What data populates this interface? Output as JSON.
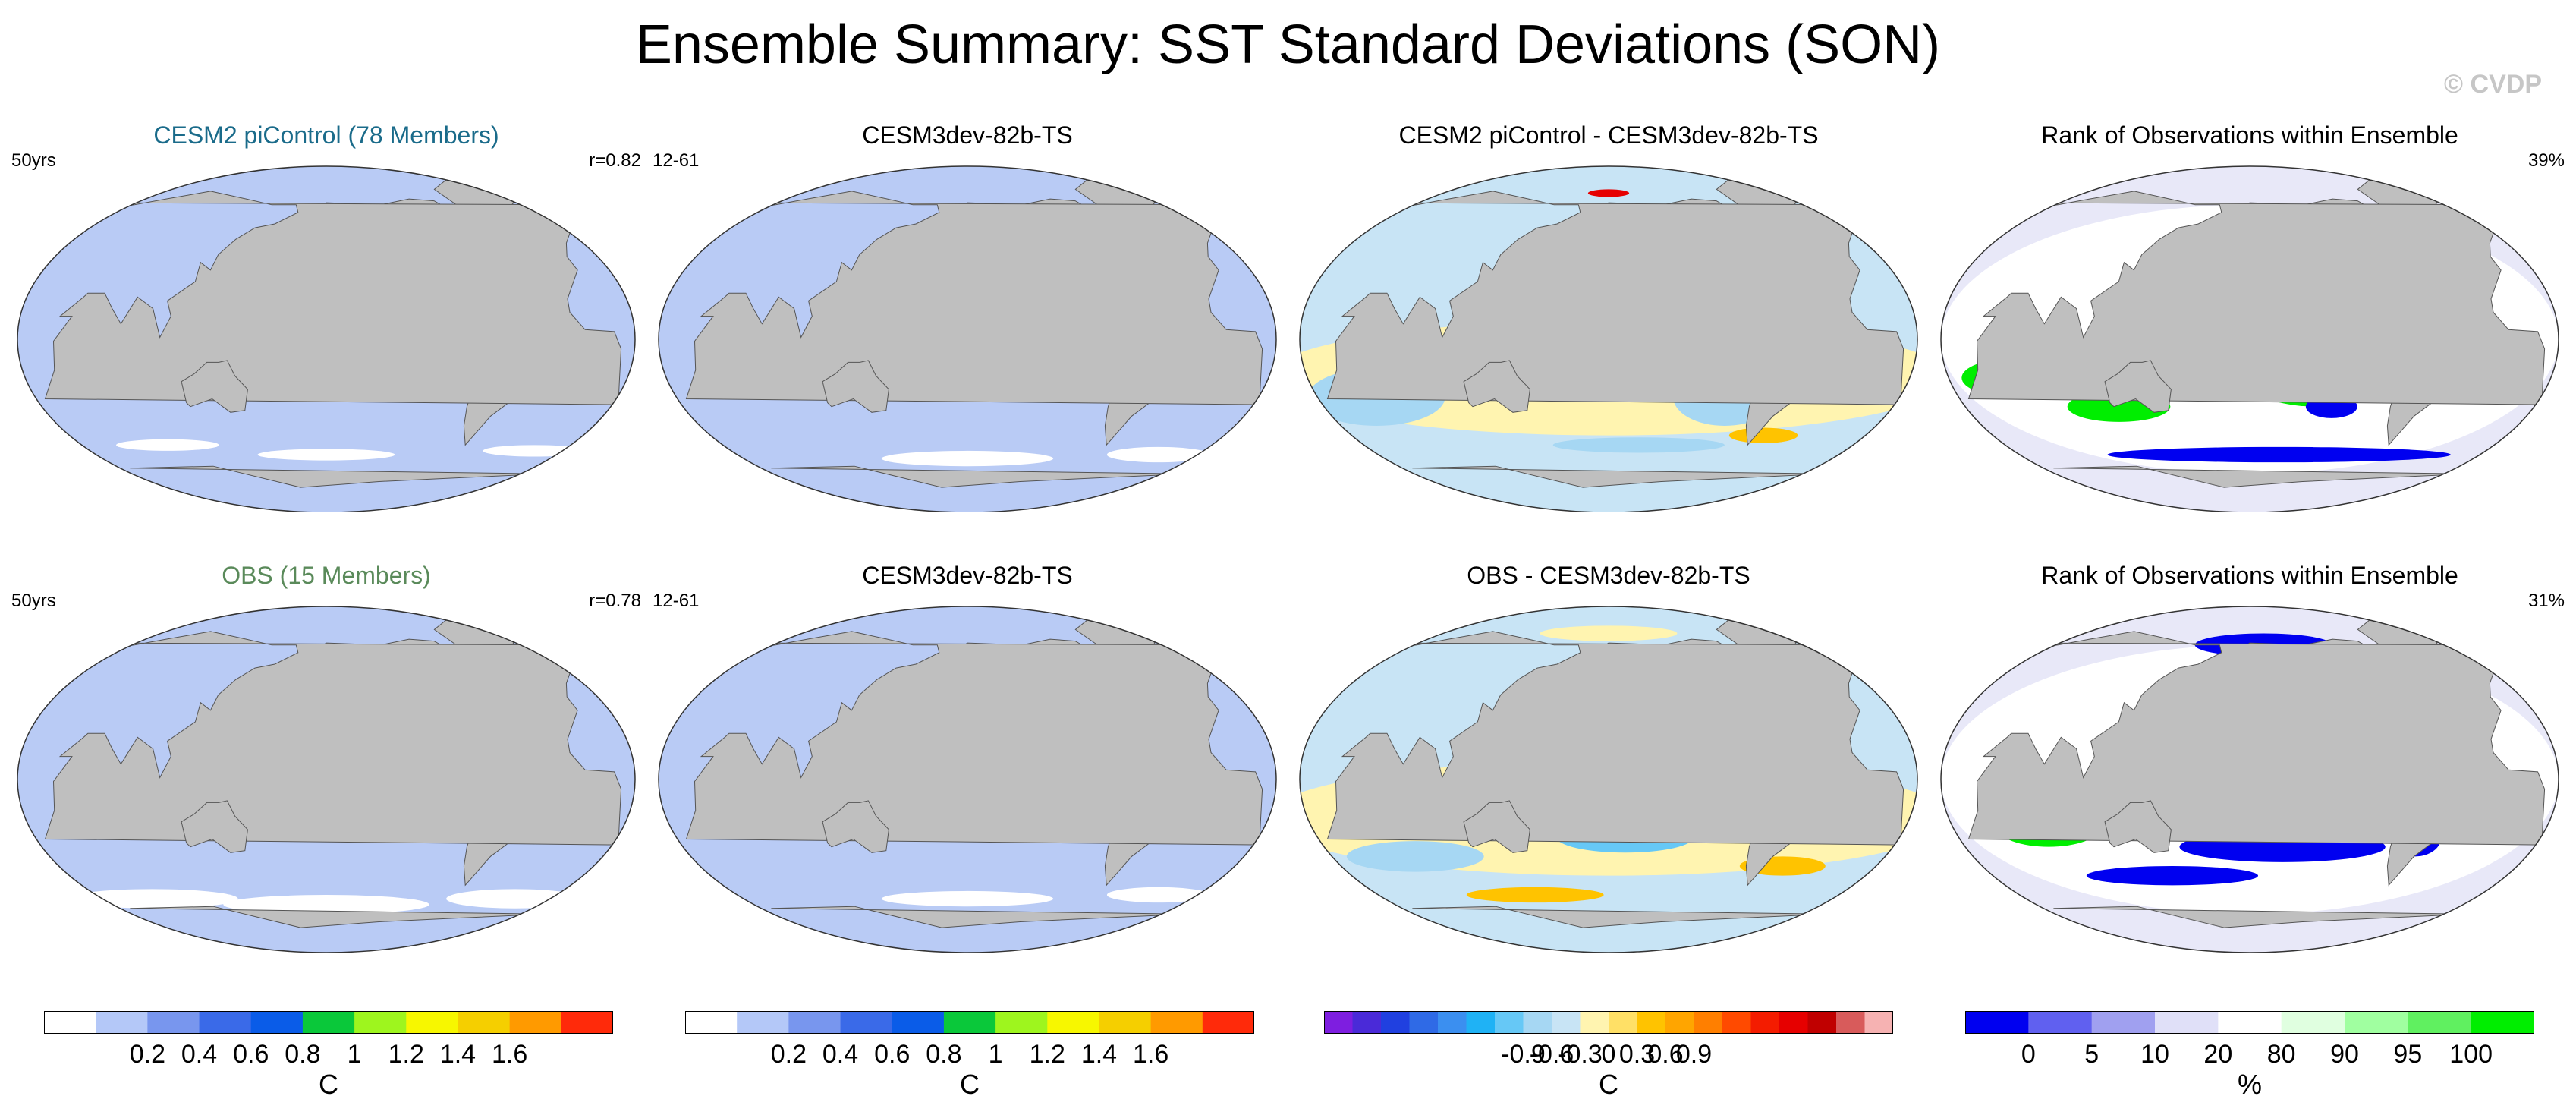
{
  "title": "Ensemble Summary: SST Standard Deviations (SON)",
  "credit": "© CVDP",
  "colors": {
    "land": "#bfbfbf",
    "ocean_base": "#b9cbf5",
    "sd_scale": [
      "#ffffff",
      "#b4c8f8",
      "#7896ee",
      "#3a6ae8",
      "#0a5ce8",
      "#0ac83a",
      "#9ef51e",
      "#f7f700",
      "#f5cf00",
      "#ff9a00",
      "#ff2a0a"
    ],
    "diff_scale": [
      "#7e1ee0",
      "#4a2ad8",
      "#2040e0",
      "#2f6ae6",
      "#3b8ff0",
      "#1fb2f5",
      "#66c8f6",
      "#a6d7f3",
      "#c8e4f5",
      "#fff4b0",
      "#ffe066",
      "#ffc300",
      "#ffa500",
      "#ff7f00",
      "#ff4a00",
      "#f41c00",
      "#e60000",
      "#c00000",
      "#d85b5b",
      "#f6b2b2"
    ],
    "rank_scale": [
      "#0000f0",
      "#6060f0",
      "#a0a0f0",
      "#e0e0f8",
      "#ffffff",
      "#e0ffe0",
      "#a0ffa0",
      "#60f060",
      "#00ee00"
    ]
  },
  "panels": [
    {
      "title": "CESM2 piControl (78 Members)",
      "title_color": "#1a6b8a",
      "left": "50yrs",
      "right": "r=0.82",
      "kind": "sd_ens"
    },
    {
      "title": "CESM3dev-82b-TS",
      "title_color": "#000000",
      "left": "12-61",
      "right": "",
      "kind": "sd_model"
    },
    {
      "title": "CESM2 piControl - CESM3dev-82b-TS",
      "title_color": "#000000",
      "left": "",
      "right": "",
      "kind": "diff"
    },
    {
      "title": "Rank of Observations within Ensemble",
      "title_color": "#000000",
      "left": "",
      "right": "39%",
      "kind": "rank"
    },
    {
      "title": "OBS (15 Members)",
      "title_color": "#5a8a5a",
      "left": "50yrs",
      "right": "r=0.78",
      "kind": "sd_obs"
    },
    {
      "title": "CESM3dev-82b-TS",
      "title_color": "#000000",
      "left": "12-61",
      "right": "",
      "kind": "sd_model"
    },
    {
      "title": "OBS - CESM3dev-82b-TS",
      "title_color": "#000000",
      "left": "",
      "right": "",
      "kind": "diff"
    },
    {
      "title": "Rank of Observations within Ensemble",
      "title_color": "#000000",
      "left": "",
      "right": "31%",
      "kind": "rank"
    }
  ],
  "colorbars": [
    {
      "scale": "sd_scale",
      "ticks": [
        "0.2",
        "0.4",
        "0.6",
        "0.8",
        "1",
        "1.2",
        "1.4",
        "1.6"
      ],
      "unit": "C"
    },
    {
      "scale": "sd_scale",
      "ticks": [
        "0.2",
        "0.4",
        "0.6",
        "0.8",
        "1",
        "1.2",
        "1.4",
        "1.6"
      ],
      "unit": "C"
    },
    {
      "scale": "diff_scale",
      "ticks": [
        "-0.9",
        "-0.6",
        "-0.3",
        "0",
        "0.3",
        "0.6",
        "0.9"
      ],
      "unit": "C"
    },
    {
      "scale": "rank_scale",
      "ticks": [
        "0",
        "5",
        "10",
        "20",
        "80",
        "90",
        "95",
        "100"
      ],
      "unit": "%"
    }
  ],
  "chart_data": {
    "type": "heatmap",
    "title": "Ensemble Summary: SST Standard Deviations (SON)",
    "season": "SON",
    "variable": "SST standard deviation",
    "units": "C",
    "sd_levels": [
      0.2,
      0.4,
      0.6,
      0.8,
      1.0,
      1.2,
      1.4,
      1.6
    ],
    "diff_levels": [
      -0.9,
      -0.6,
      -0.3,
      0,
      0.3,
      0.6,
      0.9
    ],
    "rank_levels_pct": [
      0,
      5,
      10,
      20,
      80,
      90,
      95,
      100
    ],
    "pattern_correlations": {
      "CESM2 piControl (78 Members)": 0.82,
      "OBS (15 Members)": 0.78
    },
    "obs_rank_summary_pct": {
      "CESM2 piControl": 39,
      "OBS": 31
    }
  }
}
